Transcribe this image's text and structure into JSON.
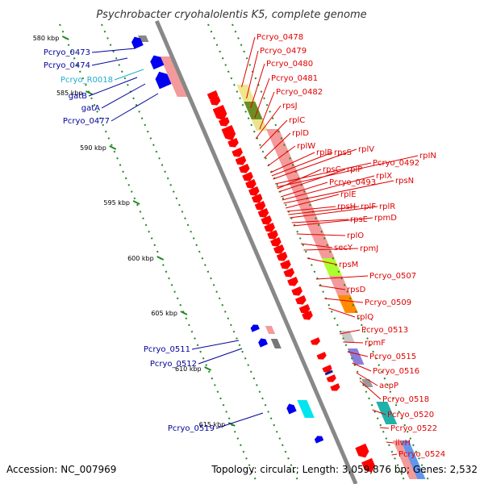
{
  "title": "Psychrobacter cryohalolentis K5, complete genome",
  "footer": {
    "accession": "Accession: NC_007969",
    "summary": "Topology: circular; Length: 3,059,876 bp; Genes: 2,532"
  },
  "colors": {
    "forward_label": "#e00000",
    "reverse_label": "#000099",
    "rna_label": "#22aacc",
    "forward_gene": "#ff0000",
    "reverse_gene": "#0000ee",
    "backbone": "#888888",
    "tick": "#228822"
  },
  "kbp_ticks": [
    "580 kbp",
    "585 kbp",
    "590 kbp",
    "595 kbp",
    "600 kbp",
    "605 kbp",
    "610 kbp",
    "615 kbp"
  ],
  "reverse_labels": [
    "Pcryo_0473",
    "Pcryo_0474",
    "gatB",
    "gatA",
    "Pcryo_0477",
    "Pcryo_0511",
    "Pcryo_0512",
    "Pcryo_0519"
  ],
  "rna_labels": [
    "Pcryo_R0018"
  ],
  "forward_labels": [
    "Pcryo_0478",
    "Pcryo_0479",
    "Pcryo_0480",
    "Pcryo_0481",
    "Pcryo_0482",
    "rpsJ",
    "rplC",
    "rplD",
    "rplW",
    "rplB",
    "rpsS",
    "rplV",
    "Pcryo_0492",
    "rpIN",
    "rpsC",
    "rplP",
    "Pcryo_0493",
    "rplX",
    "rpsN",
    "rplE",
    "rpsH",
    "rplF",
    "rplR",
    "rpsE",
    "rpmD",
    "rplO",
    "secY",
    "rpmJ",
    "rpsM",
    "Pcryo_0507",
    "rpsD",
    "Pcryo_0509",
    "rplQ",
    "Pcryo_0513",
    "rpmF",
    "Pcryo_0515",
    "Pcryo_0516",
    "acpP",
    "Pcryo_0518",
    "Pcryo_0520",
    "Pcryo_0522",
    "ilvH",
    "Pcryo_0524"
  ]
}
